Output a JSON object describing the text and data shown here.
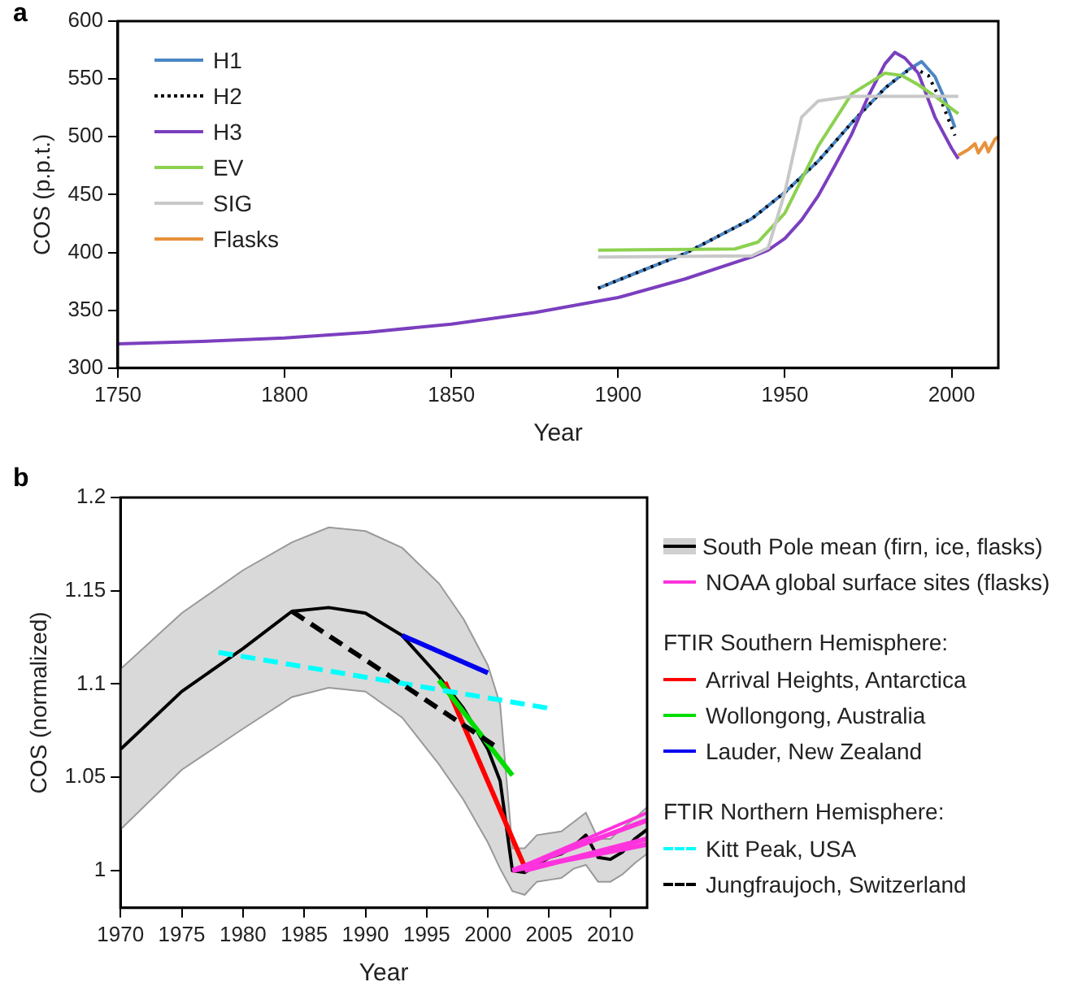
{
  "chart_data": [
    {
      "type": "line",
      "title": "a",
      "xlabel": "Year",
      "ylabel": "COS (p.p.t.)",
      "xlim": [
        1750,
        2014
      ],
      "ylim": [
        300,
        600
      ],
      "xticks": [
        1750,
        1800,
        1850,
        1900,
        1950,
        2000
      ],
      "yticks": [
        300,
        350,
        400,
        450,
        500,
        550,
        600
      ],
      "grid": false,
      "legend": "top left",
      "marker": "none",
      "series": [
        {
          "name": "H1",
          "color": "#4a86c5",
          "x": [
            1894,
            1900,
            1920,
            1940,
            1950,
            1960,
            1970,
            1980,
            1987,
            1991,
            1995,
            1998,
            2001
          ],
          "values": [
            369,
            376,
            399,
            429,
            452,
            479,
            512,
            542,
            558,
            565,
            552,
            532,
            508
          ]
        },
        {
          "name": "H2",
          "color": "#000000",
          "line_style": "dotted",
          "x": [
            1894,
            1900,
            1920,
            1940,
            1950,
            1960,
            1970,
            1980,
            1986,
            1989,
            1993,
            1997,
            2001
          ],
          "values": [
            369,
            376,
            399,
            429,
            452,
            479,
            512,
            542,
            556,
            559,
            553,
            530,
            501
          ]
        },
        {
          "name": "H3",
          "color": "#7b3fbf",
          "x": [
            1750,
            1775,
            1800,
            1825,
            1850,
            1875,
            1900,
            1920,
            1940,
            1945,
            1950,
            1955,
            1960,
            1965,
            1970,
            1975,
            1980,
            1983,
            1986,
            1990,
            1995,
            2000,
            2002
          ],
          "values": [
            321,
            323,
            326,
            331,
            338,
            348,
            361,
            377,
            396,
            402,
            412,
            428,
            449,
            475,
            502,
            535,
            563,
            573,
            568,
            555,
            517,
            490,
            481
          ]
        },
        {
          "name": "EV",
          "color": "#8cd150",
          "x": [
            1894,
            1935,
            1942,
            1950,
            1960,
            1970,
            1980,
            1985,
            1990,
            1995,
            2002
          ],
          "values": [
            402,
            403,
            409,
            434,
            492,
            537,
            555,
            553,
            545,
            535,
            520
          ]
        },
        {
          "name": "SIG",
          "color": "#c8c8c8",
          "x": [
            1894,
            1940,
            1945,
            1950,
            1955,
            1960,
            1970,
            2002
          ],
          "values": [
            396,
            397,
            404,
            452,
            517,
            531,
            535,
            535
          ]
        },
        {
          "name": "Flasks",
          "color": "#e8913a",
          "x": [
            2002,
            2005,
            2007,
            2008,
            2010,
            2011,
            2013,
            2014
          ],
          "values": [
            484,
            489,
            494,
            486,
            495,
            487,
            498,
            500
          ]
        }
      ]
    },
    {
      "type": "line",
      "title": "b",
      "xlabel": "Year",
      "ylabel": "COS (normalized)",
      "xlim": [
        1970,
        2013
      ],
      "ylim": [
        0.98,
        1.2
      ],
      "xticks": [
        1970,
        1975,
        1980,
        1985,
        1990,
        1995,
        2000,
        2005,
        2010
      ],
      "yticks": [
        1,
        1.05,
        1.1,
        1.15,
        1.2
      ],
      "grid": false,
      "legend": "right",
      "marker": "none",
      "annotations": [
        "FTIR Southern Hemisphere:",
        "FTIR Northern Hemisphere:"
      ],
      "series": [
        {
          "name": "South Pole mean (firn, ice, flasks)",
          "color": "#000000",
          "x": [
            1970,
            1975,
            1980,
            1984,
            1987,
            1990,
            1993,
            1996,
            1998,
            2000,
            2001,
            2002,
            2003,
            2004,
            2005,
            2006,
            2007,
            2008,
            2009,
            2010,
            2011,
            2012,
            2013
          ],
          "values": [
            1.065,
            1.096,
            1.119,
            1.139,
            1.141,
            1.138,
            1.126,
            1.104,
            1.087,
            1.065,
            1.048,
            1.0,
            0.999,
            1.003,
            1.007,
            1.009,
            1.013,
            1.019,
            1.007,
            1.006,
            1.01,
            1.017,
            1.022
          ],
          "upper": [
            1.108,
            1.138,
            1.161,
            1.176,
            1.184,
            1.182,
            1.173,
            1.154,
            1.135,
            1.11,
            1.089,
            1.012,
            1.012,
            1.019,
            1.02,
            1.021,
            1.026,
            1.031,
            1.017,
            1.017,
            1.023,
            1.028,
            1.034
          ],
          "lower": [
            1.022,
            1.054,
            1.076,
            1.093,
            1.098,
            1.096,
            1.082,
            1.057,
            1.038,
            1.015,
            1.001,
            0.989,
            0.987,
            0.994,
            0.995,
            0.996,
            1.001,
            1.003,
            0.994,
            0.994,
            0.998,
            1.004,
            1.009
          ]
        },
        {
          "name": "NOAA global surface sites (flasks)",
          "color": "#ff33dd",
          "x": [
            2002,
            2013
          ],
          "values": [
            1.0,
            1.031
          ]
        },
        {
          "name": "Arrival Heights, Antarctica",
          "color": "#ff0000",
          "x": [
            1996.5,
            2003
          ],
          "values": [
            1.101,
            1.002
          ]
        },
        {
          "name": "Wollongong, Australia",
          "color": "#00dd00",
          "x": [
            1996,
            2002
          ],
          "values": [
            1.102,
            1.051
          ]
        },
        {
          "name": "Lauder, New Zealand",
          "color": "#0000ee",
          "x": [
            1993,
            2000
          ],
          "values": [
            1.126,
            1.106
          ]
        },
        {
          "name": "Kitt Peak, USA",
          "color": "#00ffff",
          "line_style": "dashed",
          "x": [
            1978,
            2005
          ],
          "values": [
            1.117,
            1.087
          ]
        },
        {
          "name": "Jungfraujoch, Switzerland",
          "color": "#000000",
          "line_style": "dashed",
          "x": [
            1984,
            2001
          ],
          "values": [
            1.139,
            1.065
          ]
        },
        {
          "color": "#ff33dd",
          "x": [
            2002,
            2013
          ],
          "values": [
            1.0,
            1.027
          ]
        },
        {
          "color": "#ff33dd",
          "x": [
            2003,
            2013
          ],
          "values": [
            1.0,
            1.017
          ]
        },
        {
          "color": "#ff33dd",
          "x": [
            2002,
            2013
          ],
          "values": [
            1.0,
            1.014
          ]
        }
      ]
    }
  ]
}
